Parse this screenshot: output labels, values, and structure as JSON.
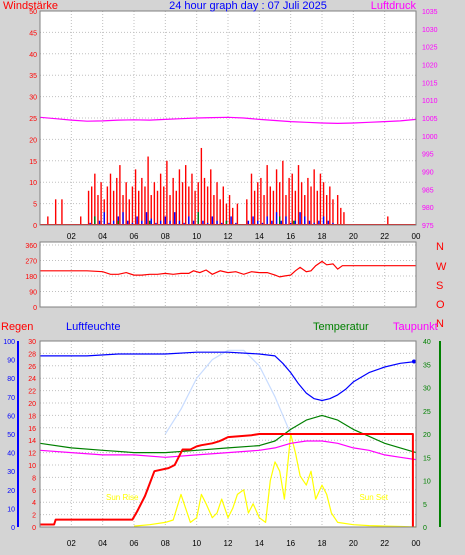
{
  "chart_data": [
    {
      "type": "bar",
      "title": "24 hour graph day : 07 Juli 2025",
      "ylabel_left": "Windstärke",
      "ylabel_right": "Luftdruck",
      "ylim_left": [
        0,
        50
      ],
      "yticks_left": [
        "0",
        "5",
        "10",
        "15",
        "20",
        "25",
        "30",
        "35",
        "40",
        "45",
        "50"
      ],
      "ylim_right": [
        975,
        1035
      ],
      "yticks_right": [
        "975",
        "980",
        "985",
        "990",
        "995",
        "1000",
        "1005",
        "1010",
        "1015",
        "1020",
        "1025",
        "1030",
        "1035"
      ],
      "xlim": [
        0,
        24
      ],
      "xticks": [
        "02",
        "04",
        "06",
        "08",
        "10",
        "12",
        "14",
        "16",
        "18",
        "20",
        "22",
        "00"
      ],
      "grid": true,
      "series": [
        {
          "color": "#ff0000",
          "x": [
            0.5,
            1.0,
            1.4,
            2.6,
            3.1,
            3.3,
            3.5,
            3.7,
            3.9,
            4.1,
            4.3,
            4.5,
            4.7,
            4.9,
            5.1,
            5.3,
            5.5,
            5.7,
            5.9,
            6.1,
            6.3,
            6.5,
            6.7,
            6.9,
            7.1,
            7.3,
            7.5,
            7.7,
            7.9,
            8.1,
            8.3,
            8.5,
            8.7,
            8.9,
            9.1,
            9.3,
            9.5,
            9.7,
            9.9,
            10.1,
            10.3,
            10.5,
            10.7,
            10.9,
            11.1,
            11.3,
            11.5,
            11.7,
            11.9,
            12.1,
            12.3,
            12.6,
            13.2,
            13.5,
            13.7,
            13.9,
            14.1,
            14.3,
            14.5,
            14.7,
            14.9,
            15.1,
            15.3,
            15.5,
            15.7,
            15.9,
            16.1,
            16.3,
            16.5,
            16.7,
            16.9,
            17.1,
            17.3,
            17.5,
            17.7,
            17.9,
            18.1,
            18.3,
            18.5,
            18.7,
            19.0,
            19.2,
            19.4,
            22.2
          ],
          "values": [
            2,
            6,
            6,
            2,
            8,
            9,
            12,
            7,
            10,
            6,
            9,
            12,
            8,
            11,
            14,
            7,
            10,
            6,
            9,
            13,
            8,
            11,
            9,
            16,
            7,
            10,
            8,
            12,
            9,
            15,
            7,
            11,
            8,
            13,
            10,
            14,
            9,
            12,
            8,
            10,
            18,
            11,
            9,
            13,
            7,
            10,
            6,
            9,
            5,
            7,
            4,
            5,
            6,
            12,
            8,
            10,
            11,
            7,
            14,
            9,
            8,
            13,
            10,
            15,
            7,
            11,
            12,
            8,
            14,
            10,
            7,
            11,
            9,
            13,
            8,
            12,
            10,
            7,
            9,
            6,
            7,
            4,
            3,
            2
          ]
        },
        {
          "color": "#0000ff",
          "x": [
            3.2,
            3.5,
            3.8,
            4.1,
            4.4,
            4.7,
            5.0,
            5.3,
            5.6,
            5.9,
            6.2,
            6.5,
            6.8,
            7.1,
            7.4,
            7.7,
            8.0,
            8.3,
            8.6,
            8.9,
            9.2,
            9.5,
            9.8,
            10.1,
            10.4,
            10.7,
            11.0,
            11.3,
            11.6,
            11.9,
            12.2,
            12.5,
            13.3,
            13.6,
            13.9,
            14.2,
            14.5,
            14.8,
            15.1,
            15.4,
            15.7,
            16.0,
            16.3,
            16.6,
            16.9,
            17.2,
            17.5,
            17.8,
            18.1,
            18.4,
            18.7
          ],
          "values": [
            0.5,
            2,
            1,
            3,
            0.5,
            1,
            2,
            3,
            1,
            0.5,
            2,
            1,
            3,
            1.5,
            0.5,
            1,
            2,
            1,
            3,
            1,
            0.5,
            2,
            1,
            3,
            1,
            0.5,
            2,
            1,
            0.5,
            1,
            2,
            0.5,
            1,
            2,
            1,
            0.5,
            2,
            1,
            3,
            1,
            2,
            0.5,
            1,
            3,
            2,
            1,
            0.5,
            1,
            2,
            1,
            0.5
          ]
        },
        {
          "color": "#008000",
          "x": [
            3.5,
            5.0,
            7.0,
            10.1,
            11.9,
            15.3,
            16.2
          ],
          "values": [
            2,
            1,
            1,
            3,
            1,
            2,
            1
          ]
        },
        {
          "axis": "right",
          "color": "#ff00ff",
          "x": [
            0,
            1,
            2,
            3,
            4,
            5,
            6,
            7,
            8,
            9,
            10,
            11,
            12,
            13,
            14,
            15,
            16,
            17,
            18,
            19,
            20,
            21,
            22,
            23,
            24
          ],
          "values": [
            1005.2,
            1004.8,
            1004.4,
            1004.1,
            1004.2,
            1004.4,
            1004.5,
            1004.4,
            1004.6,
            1004.8,
            1005.0,
            1005.1,
            1005.2,
            1005.0,
            1004.6,
            1004.3,
            1004.0,
            1003.8,
            1003.6,
            1003.5,
            1003.6,
            1003.8,
            1004.0,
            1004.2,
            1004.6
          ]
        }
      ]
    },
    {
      "type": "line",
      "ylim": [
        0,
        360
      ],
      "yticks": [
        "0",
        "90",
        "180",
        "270",
        "360"
      ],
      "direction_labels": [
        "N",
        "W",
        "S",
        "O",
        "N"
      ],
      "xlim": [
        0,
        24
      ],
      "grid": true,
      "series": [
        {
          "color": "#ff0000",
          "x": [
            0,
            1,
            2,
            3,
            4,
            4.5,
            5,
            5.5,
            6,
            6.5,
            7,
            7.5,
            8,
            8.5,
            9,
            9.5,
            9.8,
            10.2,
            10.6,
            11,
            11.5,
            12,
            12.5,
            13,
            13.5,
            14,
            14.5,
            15,
            15.3,
            15.6,
            16,
            16.3,
            16.6,
            17,
            17.3,
            17.6,
            18,
            18.3,
            18.7,
            19,
            19.3,
            20,
            21,
            22,
            23,
            24
          ],
          "values": [
            210,
            210,
            210,
            210,
            205,
            190,
            190,
            200,
            185,
            185,
            190,
            190,
            195,
            190,
            195,
            195,
            210,
            200,
            215,
            190,
            210,
            200,
            205,
            190,
            205,
            200,
            200,
            185,
            175,
            180,
            185,
            210,
            230,
            205,
            210,
            240,
            265,
            245,
            250,
            220,
            240,
            240,
            240,
            240,
            240,
            240
          ]
        }
      ]
    },
    {
      "type": "line",
      "ylabel_left": "Regen",
      "ylim_rain": [
        0,
        30
      ],
      "yticks_rain": [
        "0",
        "2",
        "4",
        "6",
        "8",
        "10",
        "12",
        "14",
        "16",
        "18",
        "20",
        "22",
        "24",
        "26",
        "28",
        "30"
      ],
      "ylabel_humidity": "Luftfeuchte",
      "ylim_humidity": [
        0,
        100
      ],
      "yticks_humidity": [
        "0",
        "10",
        "20",
        "30",
        "40",
        "50",
        "60",
        "70",
        "80",
        "90",
        "100"
      ],
      "ylabel_temperature": "Temperatur",
      "ylabel_dewpoint": "Taupunkt",
      "ylim_right": [
        0,
        40
      ],
      "yticks_right": [
        "0",
        "5",
        "10",
        "15",
        "20",
        "25",
        "30",
        "35",
        "40"
      ],
      "xlim": [
        0,
        24
      ],
      "xticks": [
        "02",
        "04",
        "06",
        "08",
        "10",
        "12",
        "14",
        "16",
        "18",
        "20",
        "22",
        "00"
      ],
      "annotations": [
        {
          "text": "Sun Rise",
          "x": 5.25
        },
        {
          "text": "Sun Set",
          "x": 21.3
        }
      ],
      "grid": true,
      "series": [
        {
          "color": "#0000ff",
          "x": [
            0,
            3,
            5,
            8,
            10,
            12,
            14,
            15,
            15.5,
            16,
            16.5,
            17,
            17.5,
            18,
            18.5,
            19,
            19.5,
            20,
            21,
            22,
            23,
            24
          ],
          "values": [
            92,
            92,
            93,
            93,
            94,
            94,
            93,
            92,
            88,
            83,
            77,
            72,
            69,
            68,
            69,
            71,
            74,
            78,
            83,
            86,
            88,
            89
          ]
        },
        {
          "color": "#008000",
          "x": [
            0,
            2,
            4,
            6,
            8,
            10,
            12,
            14,
            15,
            16,
            17,
            18,
            19,
            20,
            21,
            22,
            23,
            24
          ],
          "values": [
            18,
            17,
            16.5,
            16,
            16,
            16.5,
            17,
            17.5,
            18.5,
            21,
            23,
            24,
            23,
            21,
            19.5,
            18,
            17,
            16
          ]
        },
        {
          "color": "#ff00ff",
          "x": [
            0,
            2,
            4,
            6,
            8,
            10,
            12,
            14,
            15,
            16,
            17,
            18,
            19,
            20,
            21,
            22,
            23,
            24
          ],
          "values": [
            16.5,
            16,
            15.5,
            15.5,
            15,
            15.5,
            16,
            16.5,
            17,
            18,
            18.5,
            18.5,
            18,
            17,
            16.5,
            15.5,
            15,
            14.5
          ]
        },
        {
          "color": "#ff0000",
          "x": [
            0,
            0.9,
            1.0,
            5.9,
            6.2,
            6.7,
            7.0,
            7.3,
            8.2,
            8.6,
            8.9,
            9.1,
            9.6,
            10.0,
            10.3,
            11.0,
            11.4,
            11.6,
            12.0,
            13.5,
            14.0,
            23.8,
            23.8
          ],
          "values": [
            0.4,
            0.4,
            1.2,
            1.2,
            2.5,
            5.0,
            7.0,
            9.0,
            9.5,
            10.0,
            11.5,
            12.5,
            12.5,
            13.0,
            13.2,
            13.5,
            13.8,
            14.0,
            14.5,
            14.8,
            15.0,
            15.0,
            0
          ]
        },
        {
          "color": "#c8dcff",
          "x": [
            8.0,
            9.0,
            10.0,
            11.0,
            12.0,
            13.0,
            14.0,
            15.0,
            16.0
          ],
          "values": [
            15.0,
            19.0,
            24.0,
            27.0,
            28.5,
            28.5,
            26.0,
            21.0,
            15.0
          ]
        },
        {
          "axis": "right",
          "color": "#ffff00",
          "x": [
            6.0,
            7.0,
            8.0,
            8.5,
            9.0,
            9.3,
            9.6,
            10.0,
            10.3,
            10.6,
            11.0,
            11.3,
            11.6,
            12.0,
            12.3,
            12.6,
            13.0,
            13.3,
            13.6,
            14.0,
            14.4,
            14.7,
            15.0,
            15.3,
            15.6,
            16.0,
            16.3,
            16.6,
            17.0,
            17.3,
            17.6,
            18.0,
            18.3,
            18.6,
            19.0,
            20.0,
            21.0,
            22.0,
            23.0,
            24.0
          ],
          "values": [
            0.2,
            0.5,
            1,
            1.5,
            7,
            4,
            1,
            2,
            7,
            5,
            2,
            3,
            6,
            2,
            4,
            7,
            8,
            3,
            5,
            2,
            1,
            10,
            14,
            12,
            6,
            20,
            16,
            11,
            9,
            12,
            6,
            9,
            7,
            3,
            1,
            0.5,
            0.3,
            0.2,
            0.1,
            0
          ]
        }
      ]
    }
  ]
}
